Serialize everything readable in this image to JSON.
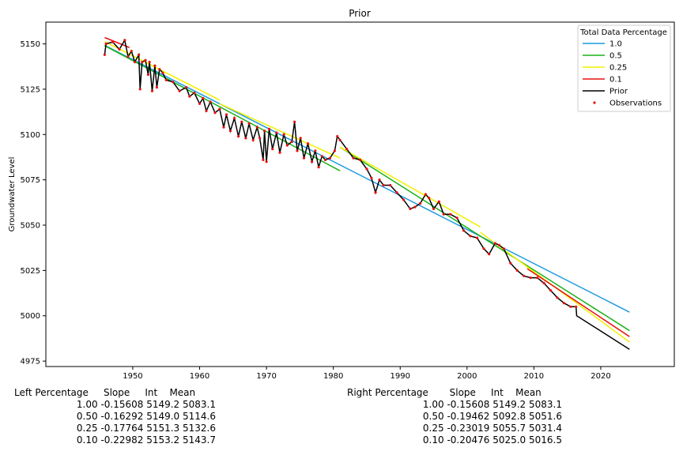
{
  "chart_data": {
    "type": "line",
    "title": "Prior",
    "xlabel": "",
    "ylabel": "Groundwater Level",
    "xlim": [
      1937,
      2031
    ],
    "ylim": [
      4972,
      5162
    ],
    "xticks": [
      1950,
      1960,
      1970,
      1980,
      1990,
      2000,
      2010,
      2020
    ],
    "yticks": [
      4975,
      5000,
      5025,
      5050,
      5075,
      5100,
      5125,
      5150
    ],
    "legend": {
      "title": "Total Data Percentage",
      "placement": "top-right",
      "entries": [
        "1.0",
        "0.5",
        "0.25",
        "0.1",
        "Prior",
        "Observations"
      ]
    },
    "colors": {
      "1.0": "#1f9ae0",
      "0.5": "#19b219",
      "0.25": "#f0f000",
      "0.1": "#e81010",
      "Prior": "#000000",
      "Observations": "#e81010"
    },
    "trend_lines": [
      {
        "name": "1.0",
        "segments": [
          {
            "x": [
              1945.8,
              2024.3
            ],
            "y": [
              5149.2,
              5002.0
            ]
          }
        ]
      },
      {
        "name": "0.5",
        "segments": [
          {
            "x": [
              1945.8,
              1981.0
            ],
            "y": [
              5149.0,
              5080.0
            ]
          },
          {
            "x": [
              1981.0,
              2024.3
            ],
            "y": [
              5093.0,
              4991.8
            ]
          }
        ]
      },
      {
        "name": "0.25",
        "segments": [
          {
            "x": [
              1945.8,
              1963.0
            ],
            "y": [
              5151.3,
              5119.0
            ]
          },
          {
            "x": [
              1963.0,
              1981.0
            ],
            "y": [
              5117.0,
              5087.0
            ]
          },
          {
            "x": [
              1981.0,
              2002.0
            ],
            "y": [
              5093.0,
              5049.0
            ]
          },
          {
            "x": [
              2002.0,
              2024.3
            ],
            "y": [
              5046.0,
              4985.5
            ]
          }
        ]
      },
      {
        "name": "0.1",
        "segments": [
          {
            "x": [
              1945.8,
              1949.5
            ],
            "y": [
              5153.5,
              5148.0
            ]
          },
          {
            "x": [
              2009.0,
              2024.3
            ],
            "y": [
              5026.0,
              4988.5
            ]
          }
        ]
      }
    ],
    "prior_series": {
      "name": "Prior",
      "x": [
        1945.8,
        1946.0,
        1947.0,
        1948.0,
        1948.8,
        1949.3,
        1949.8,
        1950.3,
        1950.9,
        1951.1,
        1951.4,
        1951.9,
        1952.3,
        1952.5,
        1952.9,
        1953.3,
        1953.6,
        1954.0,
        1954.5,
        1955.0,
        1956.0,
        1957.0,
        1958.0,
        1958.5,
        1959.2,
        1960.0,
        1960.5,
        1961.0,
        1961.6,
        1962.3,
        1963.0,
        1963.6,
        1964.0,
        1964.6,
        1965.2,
        1965.8,
        1966.3,
        1966.9,
        1967.4,
        1968.0,
        1968.6,
        1969.0,
        1969.5,
        1969.7,
        1970.0,
        1970.4,
        1970.9,
        1971.5,
        1972.0,
        1972.6,
        1973.1,
        1973.8,
        1974.2,
        1974.6,
        1975.1,
        1975.6,
        1976.2,
        1976.8,
        1977.3,
        1977.8,
        1978.3,
        1978.8,
        1979.5,
        1980.2,
        1980.6,
        1981.0,
        1982.0,
        1983.0,
        1984.0,
        1985.0,
        1985.7,
        1986.3,
        1986.9,
        1987.5,
        1988.5,
        1989.5,
        1990.5,
        1991.5,
        1992.2,
        1993.0,
        1993.8,
        1994.3,
        1995.0,
        1995.8,
        1996.5,
        1997.5,
        1998.5,
        1999.5,
        2000.5,
        2001.5,
        2002.5,
        2003.3,
        2004.2,
        2004.8,
        2005.5,
        2006.5,
        2007.5,
        2008.5,
        2009.5,
        2010.5,
        2011.5,
        2012.5,
        2013.5,
        2014.5,
        2015.5,
        2016.3,
        2016.4,
        2024.3
      ],
      "y": [
        5144.0,
        5150.0,
        5151.0,
        5147.0,
        5152.0,
        5143.0,
        5146.0,
        5140.0,
        5144.0,
        5125.0,
        5140.0,
        5141.0,
        5133.0,
        5140.0,
        5124.0,
        5138.0,
        5126.0,
        5136.0,
        5134.0,
        5130.0,
        5129.0,
        5124.0,
        5126.0,
        5121.0,
        5123.0,
        5117.0,
        5120.0,
        5113.0,
        5118.0,
        5112.0,
        5114.0,
        5104.0,
        5111.0,
        5102.0,
        5109.0,
        5099.0,
        5107.0,
        5098.0,
        5106.0,
        5097.0,
        5104.0,
        5098.0,
        5086.0,
        5102.0,
        5085.0,
        5103.0,
        5092.0,
        5101.0,
        5090.0,
        5100.0,
        5094.0,
        5096.0,
        5107.0,
        5091.0,
        5098.0,
        5087.0,
        5095.0,
        5085.0,
        5091.0,
        5082.0,
        5088.0,
        5086.0,
        5087.0,
        5091.0,
        5099.0,
        5097.0,
        5092.0,
        5087.0,
        5086.0,
        5081.0,
        5076.0,
        5068.0,
        5075.0,
        5072.0,
        5072.0,
        5068.0,
        5064.0,
        5059.0,
        5060.0,
        5062.0,
        5067.0,
        5065.0,
        5059.0,
        5063.0,
        5056.0,
        5056.0,
        5054.0,
        5047.0,
        5044.0,
        5043.0,
        5037.0,
        5034.0,
        5040.0,
        5039.0,
        5037.0,
        5029.0,
        5025.0,
        5022.0,
        5021.0,
        5021.0,
        5018.0,
        5014.0,
        5010.0,
        5007.0,
        5005.0,
        5005.0,
        5000.0,
        4981.5
      ]
    },
    "table": {
      "left": {
        "header": "Left Percentage     Slope     Int    Mean",
        "rows": [
          "1.00 -0.15608 5149.2 5083.1",
          "0.50 -0.16292 5149.0 5114.6",
          "0.25 -0.17764 5151.3 5132.6",
          "0.10 -0.22982 5153.2 5143.7"
        ]
      },
      "right": {
        "header": "Right Percentage       Slope     Int    Mean",
        "rows": [
          "1.00 -0.15608 5149.2 5083.1",
          "0.50 -0.19462 5092.8 5051.6",
          "0.25 -0.23019 5055.7 5031.4",
          "0.10 -0.20476 5025.0 5016.5"
        ]
      }
    }
  }
}
